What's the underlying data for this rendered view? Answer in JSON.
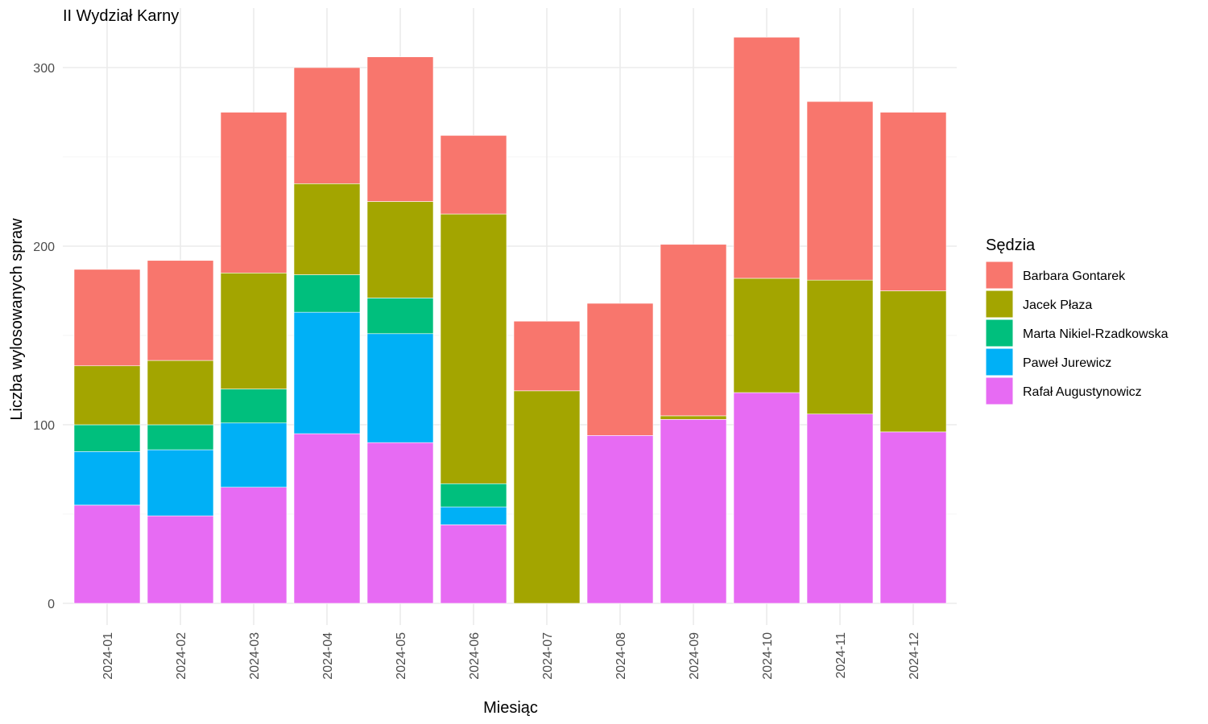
{
  "chart_data": {
    "type": "bar",
    "stacked": true,
    "title": "II Wydział Karny",
    "xlabel": "Miesiąc",
    "ylabel": "Liczba wylosowanych spraw",
    "ylim": [
      0,
      330
    ],
    "yticks": [
      0,
      100,
      200,
      300
    ],
    "grid": true,
    "legend_title": "Sędzia",
    "legend_position": "right",
    "categories": [
      "2024-01",
      "2024-02",
      "2024-03",
      "2024-04",
      "2024-05",
      "2024-06",
      "2024-07",
      "2024-08",
      "2024-09",
      "2024-10",
      "2024-11",
      "2024-12"
    ],
    "series": [
      {
        "name": "Rafał Augustynowicz",
        "color": "#E76BF3",
        "values": [
          55,
          49,
          65,
          95,
          90,
          44,
          0,
          94,
          103,
          118,
          106,
          96
        ]
      },
      {
        "name": "Paweł Jurewicz",
        "color": "#00B0F6",
        "values": [
          30,
          37,
          36,
          68,
          61,
          10,
          0,
          0,
          0,
          0,
          0,
          0
        ]
      },
      {
        "name": "Marta Nikiel-Rzadkowska",
        "color": "#00BF7D",
        "values": [
          15,
          14,
          19,
          21,
          20,
          13,
          0,
          0,
          0,
          0,
          0,
          0
        ]
      },
      {
        "name": "Jacek Płaza",
        "color": "#A3A500",
        "values": [
          33,
          36,
          65,
          51,
          54,
          151,
          119,
          0,
          2,
          64,
          75,
          79
        ]
      },
      {
        "name": "Barbara Gontarek",
        "color": "#F8766D",
        "values": [
          54,
          56,
          90,
          65,
          81,
          44,
          39,
          74,
          96,
          135,
          100,
          100
        ]
      }
    ],
    "legend_order": [
      "Barbara Gontarek",
      "Jacek Płaza",
      "Marta Nikiel-Rzadkowska",
      "Paweł Jurewicz",
      "Rafał Augustynowicz"
    ]
  }
}
